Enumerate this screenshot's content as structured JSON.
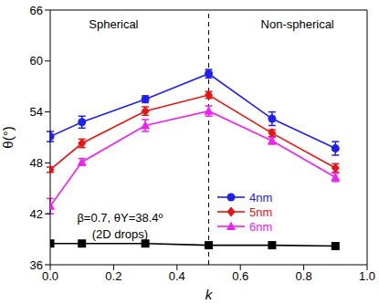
{
  "chart_data": {
    "type": "line",
    "x_label": "k",
    "y_label": "θ(°)",
    "x": [
      0,
      0.1,
      0.3,
      0.5,
      0.7,
      0.9
    ],
    "xlim": [
      0,
      1
    ],
    "xticks": [
      {
        "value": 0,
        "label": "0.0"
      },
      0.2,
      0.4,
      0.6,
      0.8,
      {
        "value": 1,
        "label": "1.0"
      }
    ],
    "ylim": [
      36,
      66
    ],
    "yticks": [
      36,
      42,
      48,
      54,
      60,
      66
    ],
    "legend": "center",
    "vline": {
      "x": 0.5,
      "line_style": "dashed"
    },
    "annotations": [
      {
        "text": "Spherical",
        "x": 0.2,
        "y": 64.3
      },
      {
        "text": "Non-spherical",
        "x": 0.78,
        "y": 64.3
      },
      {
        "text": "β=0.7, θY=38.4º",
        "x": 0.22,
        "y": 41.6
      },
      {
        "text": "(2D drops)",
        "x": 0.22,
        "y": 39.6
      }
    ],
    "series": [
      {
        "name": "4nm",
        "color": "#2020f0",
        "marker": "circle",
        "values": [
          51.1,
          52.8,
          55.5,
          58.5,
          53.2,
          49.7
        ],
        "errors": [
          0.6,
          0.7,
          0.4,
          0.5,
          0.8,
          0.8
        ]
      },
      {
        "name": "5nm",
        "color": "#e81414",
        "marker": "diamond",
        "values": [
          47.2,
          50.3,
          54.1,
          56.0,
          51.5,
          47.4
        ],
        "errors": [
          0.3,
          0.5,
          0.5,
          0.4,
          0.4,
          0.5
        ]
      },
      {
        "name": "6nm",
        "color": "#ee22ee",
        "marker": "triangle",
        "values": [
          42.9,
          48.1,
          52.4,
          54.1,
          50.6,
          46.3
        ],
        "errors": [
          0.9,
          0.4,
          0.7,
          0.6,
          0.4,
          0.5
        ]
      },
      {
        "color": "#000000",
        "marker": "square",
        "values": [
          38.5,
          38.5,
          38.5,
          38.3,
          38.3,
          38.2
        ]
      }
    ]
  }
}
